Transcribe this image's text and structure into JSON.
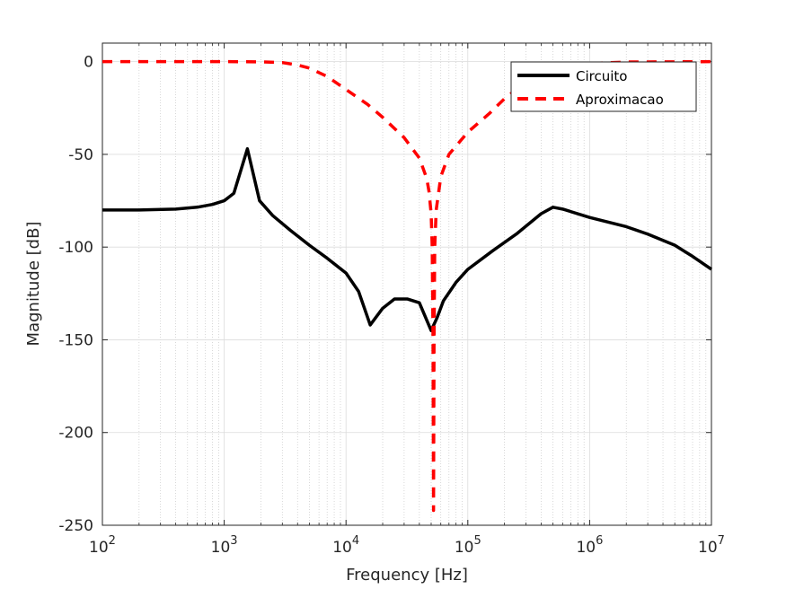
{
  "chart_data": {
    "type": "line",
    "xscale": "log",
    "xlabel": "Frequency [Hz]",
    "ylabel": "Magnitude [dB]",
    "xlim": [
      100,
      10000000
    ],
    "ylim": [
      -250,
      10
    ],
    "grid": true,
    "minor_grid": true,
    "legend_position": "top-right",
    "x_ticks": [
      {
        "value": 100,
        "base": "10",
        "exp": "2"
      },
      {
        "value": 1000,
        "base": "10",
        "exp": "3"
      },
      {
        "value": 10000,
        "base": "10",
        "exp": "4"
      },
      {
        "value": 100000,
        "base": "10",
        "exp": "5"
      },
      {
        "value": 1000000,
        "base": "10",
        "exp": "6"
      },
      {
        "value": 10000000,
        "base": "10",
        "exp": "7"
      }
    ],
    "y_ticks": [
      {
        "value": 0,
        "label": "0"
      },
      {
        "value": -50,
        "label": "-50"
      },
      {
        "value": -100,
        "label": "-100"
      },
      {
        "value": -150,
        "label": "-150"
      },
      {
        "value": -200,
        "label": "-200"
      },
      {
        "value": -250,
        "label": "-250"
      }
    ],
    "series": [
      {
        "name": "Circuito",
        "color": "#000000",
        "style": "solid",
        "points": [
          [
            100,
            -80
          ],
          [
            200,
            -80
          ],
          [
            400,
            -79.5
          ],
          [
            600,
            -78.5
          ],
          [
            800,
            -77
          ],
          [
            1000,
            -75
          ],
          [
            1200,
            -71
          ],
          [
            1550,
            -47
          ],
          [
            1950,
            -75
          ],
          [
            2500,
            -83
          ],
          [
            3500,
            -91
          ],
          [
            5000,
            -99
          ],
          [
            7000,
            -106
          ],
          [
            10000,
            -114
          ],
          [
            12700,
            -124
          ],
          [
            15800,
            -142
          ],
          [
            20000,
            -133
          ],
          [
            25000,
            -128
          ],
          [
            32000,
            -128
          ],
          [
            40000,
            -130
          ],
          [
            50000,
            -145
          ],
          [
            56000,
            -138
          ],
          [
            63000,
            -129
          ],
          [
            80000,
            -119
          ],
          [
            100000,
            -112
          ],
          [
            160000,
            -102
          ],
          [
            250000,
            -93
          ],
          [
            400000,
            -82
          ],
          [
            500000,
            -78.5
          ],
          [
            600000,
            -79.5
          ],
          [
            1000000,
            -84
          ],
          [
            2000000,
            -89
          ],
          [
            3000000,
            -93
          ],
          [
            5000000,
            -99
          ],
          [
            7000000,
            -105
          ],
          [
            10000000,
            -112
          ]
        ]
      },
      {
        "name": "Aproximacao",
        "color": "#ff0000",
        "style": "dashed",
        "points": [
          [
            100,
            0
          ],
          [
            1000,
            0
          ],
          [
            2000,
            -0.1
          ],
          [
            3000,
            -0.5
          ],
          [
            4000,
            -1.8
          ],
          [
            5000,
            -3.5
          ],
          [
            7000,
            -8
          ],
          [
            10000,
            -15
          ],
          [
            15000,
            -23
          ],
          [
            20000,
            -30
          ],
          [
            30000,
            -41
          ],
          [
            40000,
            -52
          ],
          [
            46000,
            -63
          ],
          [
            48000,
            -70
          ],
          [
            50000,
            -82
          ],
          [
            51000,
            -100
          ],
          [
            51800,
            -150
          ],
          [
            52300,
            -242
          ],
          [
            52800,
            -150
          ],
          [
            53500,
            -100
          ],
          [
            55000,
            -80
          ],
          [
            60000,
            -62
          ],
          [
            70000,
            -50
          ],
          [
            100000,
            -38
          ],
          [
            150000,
            -28
          ],
          [
            200000,
            -20
          ],
          [
            300000,
            -11
          ],
          [
            500000,
            -4
          ],
          [
            1000000,
            -1
          ],
          [
            2000000,
            -0.2
          ],
          [
            10000000,
            0
          ]
        ]
      }
    ]
  }
}
